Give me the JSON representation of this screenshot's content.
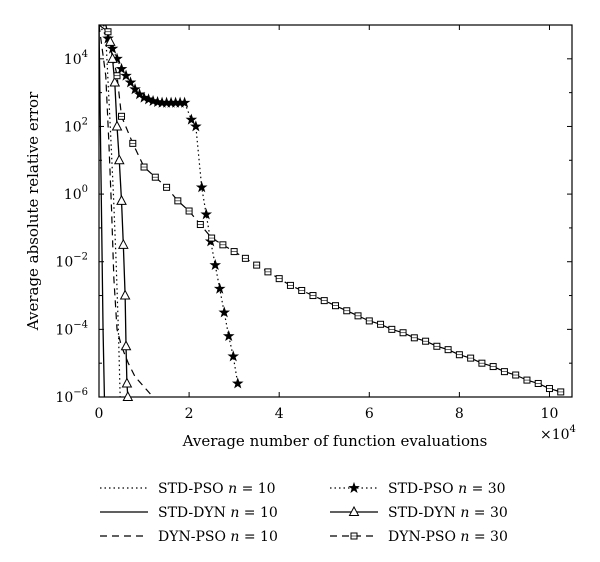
{
  "chart_data": {
    "type": "line",
    "xlabel": "Average number of function evaluations",
    "ylabel": "Average absolute relative error",
    "x_multiplier_label": "×10",
    "x_multiplier_exp": "4",
    "xlim": [
      0,
      105000
    ],
    "ylim_log10": [
      -6,
      5
    ],
    "yscale": "log",
    "x_ticks": [
      {
        "value": 0,
        "label": "0"
      },
      {
        "value": 20000,
        "label": "2"
      },
      {
        "value": 40000,
        "label": "4"
      },
      {
        "value": 60000,
        "label": "6"
      },
      {
        "value": 80000,
        "label": "8"
      },
      {
        "value": 100000,
        "label": "10"
      }
    ],
    "y_ticks": [
      {
        "exp": -6,
        "base": "10",
        "sup": "−6"
      },
      {
        "exp": -4,
        "base": "10",
        "sup": "−4"
      },
      {
        "exp": -2,
        "base": "10",
        "sup": "−2"
      },
      {
        "exp": 0,
        "base": "10",
        "sup": "0"
      },
      {
        "exp": 2,
        "base": "10",
        "sup": "2"
      },
      {
        "exp": 4,
        "base": "10",
        "sup": "4"
      }
    ],
    "grid": false,
    "legend_placement": "bottom",
    "series": [
      {
        "name_text": "STD-PSO ",
        "name_n": "n",
        "name_eq": " = 10",
        "style": "dotted",
        "marker": "none",
        "points": [
          [
            0,
            5.0
          ],
          [
            1500,
            4.7
          ],
          [
            2500,
            2.0
          ],
          [
            3200,
            0.0
          ],
          [
            3800,
            -2.0
          ],
          [
            4300,
            -4.0
          ],
          [
            4700,
            -6.0
          ]
        ]
      },
      {
        "name_text": "STD-PSO ",
        "name_n": "n",
        "name_eq": " = 30",
        "style": "dotted",
        "marker": "star",
        "points": [
          [
            1000,
            5.0
          ],
          [
            2000,
            4.6
          ],
          [
            3000,
            4.3
          ],
          [
            4000,
            4.0
          ],
          [
            5000,
            3.7
          ],
          [
            6000,
            3.5
          ],
          [
            7000,
            3.3
          ],
          [
            8000,
            3.1
          ],
          [
            9000,
            2.95
          ],
          [
            10000,
            2.85
          ],
          [
            11000,
            2.8
          ],
          [
            12000,
            2.75
          ],
          [
            13000,
            2.72
          ],
          [
            14000,
            2.7
          ],
          [
            15000,
            2.7
          ],
          [
            16000,
            2.7
          ],
          [
            17000,
            2.7
          ],
          [
            18000,
            2.7
          ],
          [
            19000,
            2.7
          ],
          [
            20500,
            2.2
          ],
          [
            21500,
            2.0
          ],
          [
            22800,
            0.2
          ],
          [
            23800,
            -0.6
          ],
          [
            24800,
            -1.4
          ],
          [
            25800,
            -2.1
          ],
          [
            26800,
            -2.8
          ],
          [
            27800,
            -3.5
          ],
          [
            28800,
            -4.2
          ],
          [
            29800,
            -4.8
          ],
          [
            30800,
            -5.6
          ]
        ]
      },
      {
        "name_text": "STD-DYN ",
        "name_n": "n",
        "name_eq": " = 10",
        "style": "solid",
        "marker": "none",
        "points": [
          [
            0,
            5.0
          ],
          [
            300,
            2.0
          ],
          [
            600,
            -1.0
          ],
          [
            900,
            -4.0
          ],
          [
            1200,
            -6.0
          ]
        ]
      },
      {
        "name_text": "STD-DYN ",
        "name_n": "n",
        "name_eq": " = 30",
        "style": "solid",
        "marker": "triangle",
        "points": [
          [
            0,
            5.0
          ],
          [
            1500,
            5.0
          ],
          [
            2500,
            4.5
          ],
          [
            3000,
            4.0
          ],
          [
            3500,
            3.3
          ],
          [
            4000,
            2.0
          ],
          [
            4500,
            1.0
          ],
          [
            5000,
            -0.2
          ],
          [
            5400,
            -1.5
          ],
          [
            5800,
            -3.0
          ],
          [
            6000,
            -4.5
          ],
          [
            6200,
            -5.6
          ],
          [
            6400,
            -6.0
          ]
        ]
      },
      {
        "name_text": "DYN-PSO ",
        "name_n": "n",
        "name_eq": " = 10",
        "style": "dashed",
        "marker": "none",
        "points": [
          [
            0,
            5.0
          ],
          [
            1500,
            3.5
          ],
          [
            2200,
            1.5
          ],
          [
            2800,
            -0.5
          ],
          [
            3300,
            -2.5
          ],
          [
            4000,
            -4.0
          ],
          [
            5000,
            -4.5
          ],
          [
            6500,
            -5.0
          ],
          [
            8000,
            -5.4
          ],
          [
            10000,
            -5.7
          ],
          [
            12000,
            -6.0
          ]
        ]
      },
      {
        "name_text": "DYN-PSO ",
        "name_n": "n",
        "name_eq": " = 30",
        "style": "dashed",
        "marker": "square",
        "points": [
          [
            0,
            5.0
          ],
          [
            2000,
            4.8
          ],
          [
            4000,
            3.5
          ],
          [
            5000,
            2.3
          ],
          [
            7500,
            1.5
          ],
          [
            10000,
            0.8
          ],
          [
            12500,
            0.5
          ],
          [
            15000,
            0.2
          ],
          [
            17500,
            -0.2
          ],
          [
            20000,
            -0.5
          ],
          [
            22500,
            -0.9
          ],
          [
            25000,
            -1.3
          ],
          [
            27500,
            -1.5
          ],
          [
            30000,
            -1.7
          ],
          [
            32500,
            -1.9
          ],
          [
            35000,
            -2.1
          ],
          [
            37500,
            -2.3
          ],
          [
            40000,
            -2.5
          ],
          [
            42500,
            -2.7
          ],
          [
            45000,
            -2.85
          ],
          [
            47500,
            -3.0
          ],
          [
            50000,
            -3.15
          ],
          [
            52500,
            -3.3
          ],
          [
            55000,
            -3.45
          ],
          [
            57500,
            -3.6
          ],
          [
            60000,
            -3.75
          ],
          [
            62500,
            -3.85
          ],
          [
            65000,
            -4.0
          ],
          [
            67500,
            -4.1
          ],
          [
            70000,
            -4.25
          ],
          [
            72500,
            -4.35
          ],
          [
            75000,
            -4.5
          ],
          [
            77500,
            -4.6
          ],
          [
            80000,
            -4.75
          ],
          [
            82500,
            -4.85
          ],
          [
            85000,
            -5.0
          ],
          [
            87500,
            -5.1
          ],
          [
            90000,
            -5.25
          ],
          [
            92500,
            -5.35
          ],
          [
            95000,
            -5.5
          ],
          [
            97500,
            -5.6
          ],
          [
            100000,
            -5.75
          ],
          [
            102500,
            -5.85
          ]
        ]
      }
    ]
  }
}
